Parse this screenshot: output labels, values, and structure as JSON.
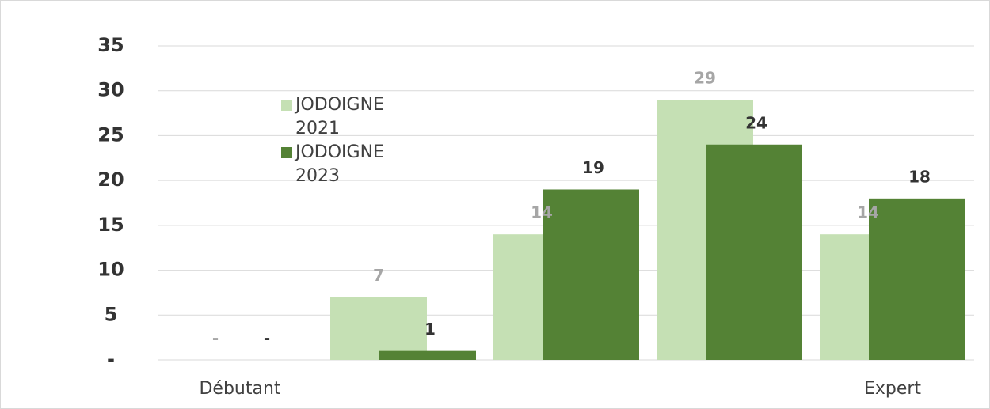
{
  "chart_data": {
    "type": "bar",
    "categories": [
      "Débutant",
      null,
      null,
      null,
      "Expert"
    ],
    "series": [
      {
        "name": "JODOIGNE 2021",
        "color": "#c5e0b4",
        "values": [
          0,
          7,
          14,
          29,
          14
        ],
        "value_labels": [
          "-",
          "7",
          "14",
          "29",
          "14"
        ],
        "label_color": "#a6a6a6"
      },
      {
        "name": "JODOIGNE 2023",
        "color": "#548235",
        "values": [
          0,
          1,
          19,
          24,
          18
        ],
        "value_labels": [
          "-",
          "1",
          "19",
          "24",
          "18"
        ],
        "label_color": "#333333"
      }
    ],
    "ylim": [
      0,
      35
    ],
    "yticks": [
      {
        "value": 0,
        "label": "-"
      },
      5,
      10,
      15,
      20,
      25,
      30,
      35
    ],
    "grid": true
  }
}
